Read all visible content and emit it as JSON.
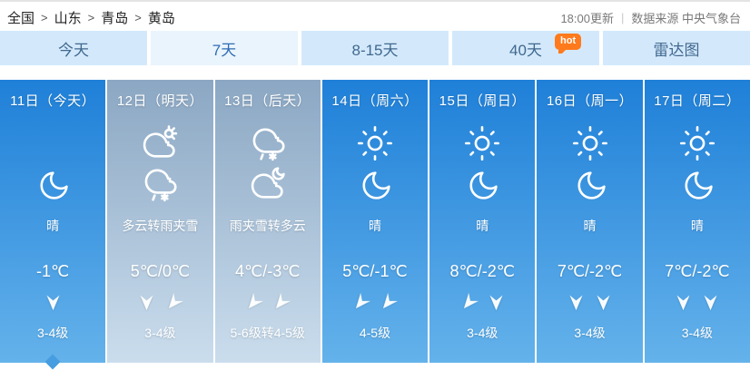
{
  "breadcrumb": {
    "items": [
      "全国",
      "山东",
      "青岛",
      "黄岛"
    ],
    "separator": ">"
  },
  "update_info": {
    "time": "18:00更新",
    "divider": "|",
    "source": "数据来源 中央气象台"
  },
  "tabs": [
    {
      "label": "今天",
      "active": false
    },
    {
      "label": "7天",
      "active": true
    },
    {
      "label": "8-15天",
      "active": false
    },
    {
      "label": "40天",
      "active": false,
      "badge": "hot"
    },
    {
      "label": "雷达图",
      "active": false
    }
  ],
  "days": [
    {
      "date": "11日（今天）",
      "icons": [
        "moon"
      ],
      "desc": "晴",
      "temp": "-1℃",
      "arrows": [
        "down"
      ],
      "wind": "3-4级",
      "theme": "blue",
      "selected": true
    },
    {
      "date": "12日（明天）",
      "icons": [
        "cloud-sun",
        "sleet"
      ],
      "desc": "多云转雨夹雪",
      "temp": "5℃/0℃",
      "arrows": [
        "down",
        "down-left"
      ],
      "wind": "3-4级",
      "theme": "gray",
      "selected": false
    },
    {
      "date": "13日（后天）",
      "icons": [
        "sleet",
        "cloud-moon"
      ],
      "desc": "雨夹雪转多云",
      "temp": "4℃/-3℃",
      "arrows": [
        "down-left",
        "down-left"
      ],
      "wind": "5-6级转4-5级",
      "theme": "gray",
      "selected": false
    },
    {
      "date": "14日（周六）",
      "icons": [
        "sun",
        "moon"
      ],
      "desc": "晴",
      "temp": "5℃/-1℃",
      "arrows": [
        "down-left",
        "down-left"
      ],
      "wind": "4-5级",
      "theme": "blue",
      "selected": false
    },
    {
      "date": "15日（周日）",
      "icons": [
        "sun",
        "moon"
      ],
      "desc": "晴",
      "temp": "8℃/-2℃",
      "arrows": [
        "down-left",
        "down"
      ],
      "wind": "3-4级",
      "theme": "blue",
      "selected": false
    },
    {
      "date": "16日（周一）",
      "icons": [
        "sun",
        "moon"
      ],
      "desc": "晴",
      "temp": "7℃/-2℃",
      "arrows": [
        "down",
        "down"
      ],
      "wind": "3-4级",
      "theme": "blue",
      "selected": false
    },
    {
      "date": "17日（周二）",
      "icons": [
        "sun",
        "moon"
      ],
      "desc": "晴",
      "temp": "7℃/-2℃",
      "arrows": [
        "down",
        "down"
      ],
      "wind": "3-4级",
      "theme": "blue",
      "selected": false
    }
  ],
  "colors": {
    "day_blue_top": "#1f80d8",
    "day_blue_bottom": "#64b2eb",
    "day_gray_top": "#8ba7c3",
    "day_gray_bottom": "#cadded",
    "tab_bg": "#d3e9fb",
    "tab_active_bg": "#eaf4fd",
    "hot_badge": "#ff7a1c"
  }
}
